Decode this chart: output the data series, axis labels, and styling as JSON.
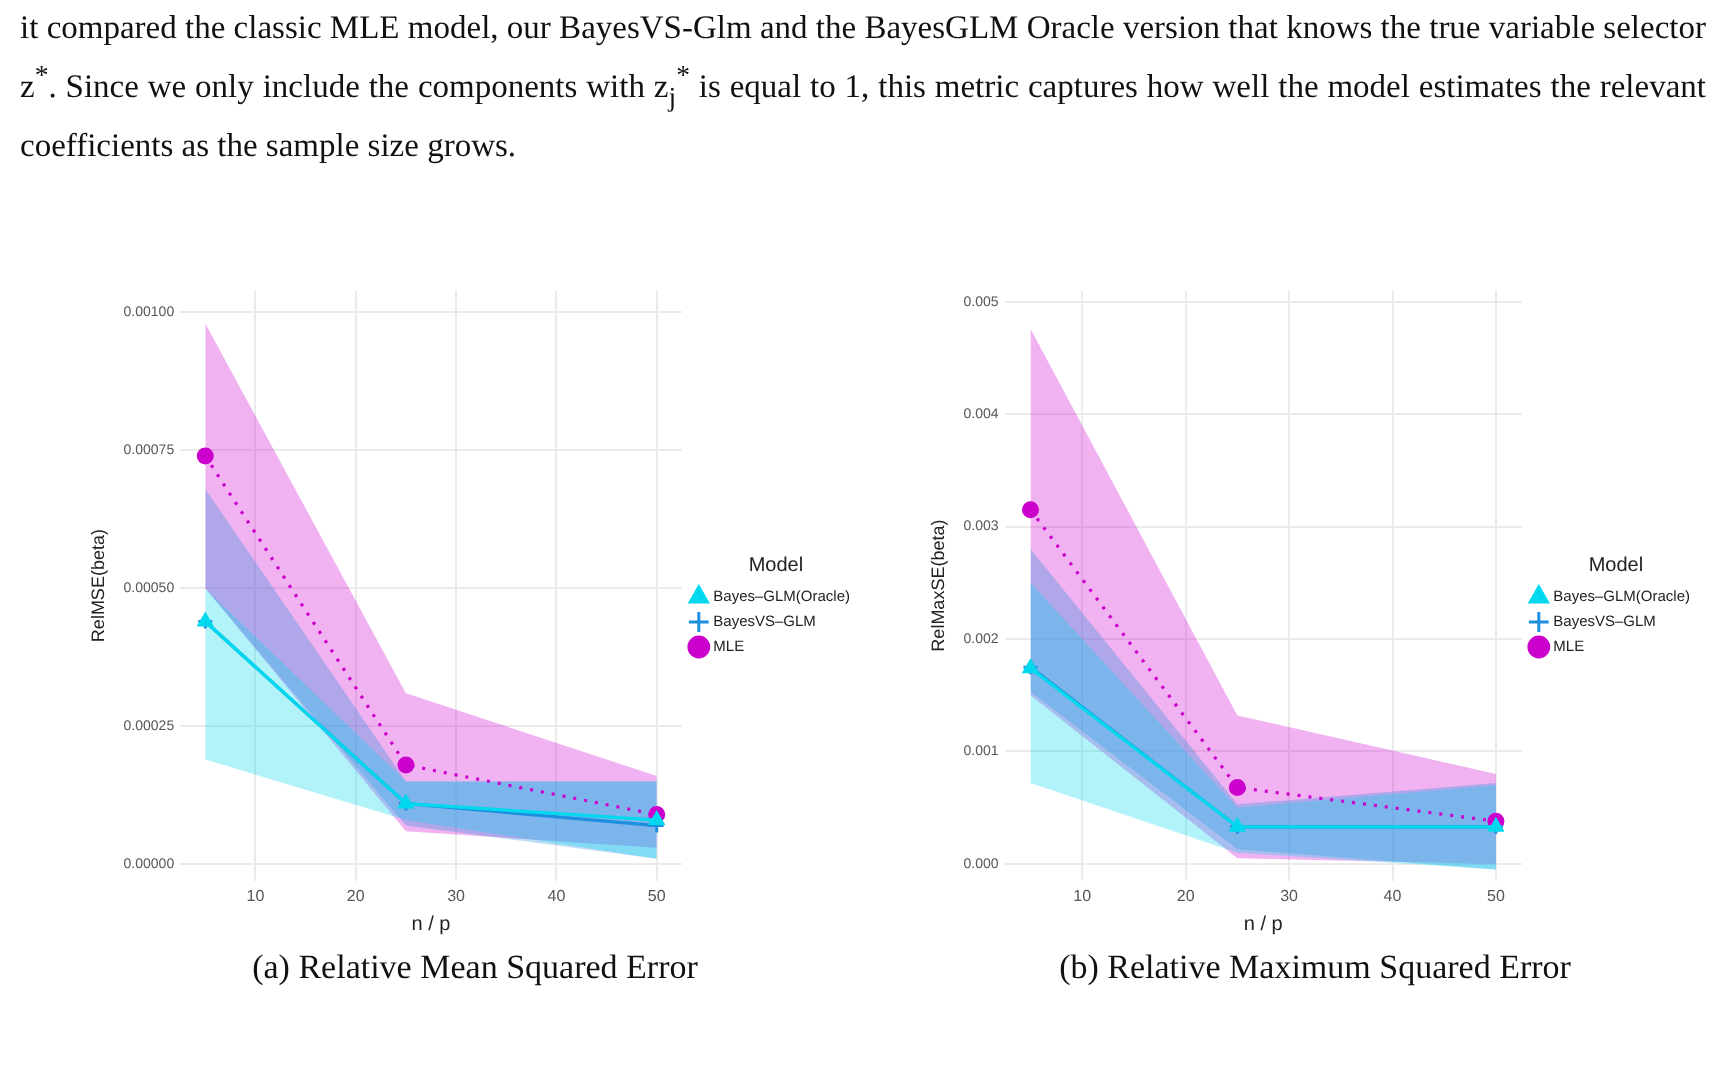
{
  "chart_data": [
    {
      "type": "line",
      "xlabel": "n / p",
      "ylabel": "RelMSE(beta)",
      "legend_title": "Model",
      "legend": "right",
      "grid": true,
      "annotations": [
        "it compared the classic MLE model, our BayesVS-Glm and the BayesGLM Oracle version that knows the true variable selector z$^{*}$. Since we only include the components with z$_{j}$$^{*}$ is equal to 1, this metric captures how well the model estimates the relevant coefficients as the sample size grows.",
        "(a) Relative Mean Squared Error"
      ],
      "x": [
        5,
        25,
        50
      ],
      "xlim": [
        2.5,
        52.5
      ],
      "xticks": [
        10,
        20,
        30,
        40,
        50
      ],
      "ylim": [
        -3e-05,
        0.00104
      ],
      "yticks": [
        {
          "value": 0,
          "label": "0.00000"
        },
        {
          "value": 0.00025,
          "label": "0.00025"
        },
        {
          "value": 0.0005,
          "label": "0.00050"
        },
        {
          "value": 0.00075,
          "label": "0.00075"
        },
        {
          "value": 0.001,
          "label": "0.00100"
        }
      ],
      "series": [
        {
          "name": "Bayes–GLM(Oracle)",
          "color": "#00d8ee",
          "marker": "triangle",
          "line_style": "solid",
          "values": [
            0.00044,
            0.00011,
            8e-05
          ],
          "lower": [
            0.00019,
            8e-05,
            1e-05
          ],
          "upper": [
            0.0005,
            0.00015,
            0.00015
          ]
        },
        {
          "name": "BayesVS–GLM",
          "color": "#1e8ee0",
          "marker": "cross",
          "line_style": "solid",
          "values": [
            0.00044,
            0.00011,
            7e-05
          ],
          "lower": [
            0.0005,
            7e-05,
            1e-05
          ],
          "upper": [
            0.00068,
            0.00015,
            0.00015
          ]
        },
        {
          "name": "MLE",
          "color": "#cc00cc",
          "marker": "circle",
          "line_style": "dotted",
          "values": [
            0.00074,
            0.00018,
            9e-05
          ],
          "lower": [
            0.0005,
            6e-05,
            3e-05
          ],
          "upper": [
            0.00098,
            0.00031,
            0.00016
          ]
        }
      ]
    },
    {
      "type": "line",
      "xlabel": "n / p",
      "ylabel": "RelMaxSE(beta)",
      "legend_title": "Model",
      "legend": "right",
      "grid": true,
      "annotations": [
        "(b) Relative Maximum Squared Error"
      ],
      "x": [
        5,
        25,
        50
      ],
      "xlim": [
        2.5,
        52.5
      ],
      "xticks": [
        10,
        20,
        30,
        40,
        50
      ],
      "ylim": [
        -0.00015,
        0.0051
      ],
      "yticks": [
        {
          "value": 0,
          "label": "0.000"
        },
        {
          "value": 0.001,
          "label": "0.001"
        },
        {
          "value": 0.002,
          "label": "0.002"
        },
        {
          "value": 0.003,
          "label": "0.003"
        },
        {
          "value": 0.004,
          "label": "0.004"
        },
        {
          "value": 0.005,
          "label": "0.005"
        }
      ],
      "series": [
        {
          "name": "Bayes–GLM(Oracle)",
          "color": "#00d8ee",
          "marker": "triangle",
          "line_style": "solid",
          "values": [
            0.00174,
            0.00033,
            0.00033
          ],
          "lower": [
            0.00072,
            0.0001,
            -5e-05
          ],
          "upper": [
            0.0025,
            0.0005,
            0.0007
          ]
        },
        {
          "name": "BayesVS–GLM",
          "color": "#1e8ee0",
          "marker": "cross",
          "line_style": "solid",
          "values": [
            0.00175,
            0.00033,
            0.00033
          ],
          "lower": [
            0.00153,
            0.00013,
            -5e-05
          ],
          "upper": [
            0.0028,
            0.00053,
            0.00072
          ]
        },
        {
          "name": "MLE",
          "color": "#cc00cc",
          "marker": "circle",
          "line_style": "dotted",
          "values": [
            0.00315,
            0.00068,
            0.00038
          ],
          "lower": [
            0.0015,
            5e-05,
            0
          ],
          "upper": [
            0.00476,
            0.00132,
            0.0008
          ]
        }
      ]
    }
  ]
}
